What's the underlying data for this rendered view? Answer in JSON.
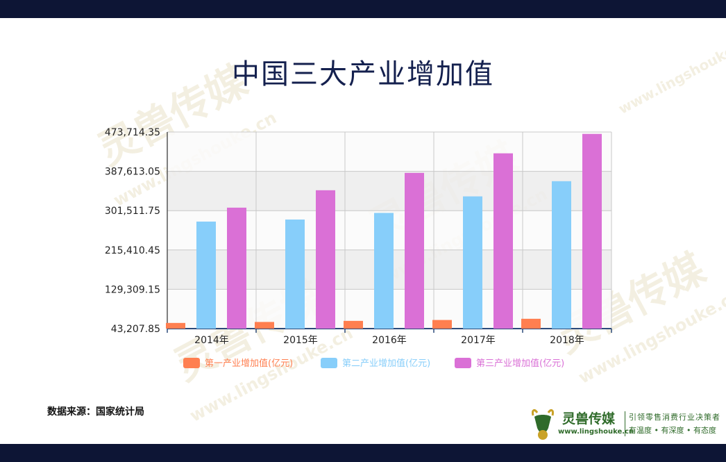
{
  "page": {
    "title": "中国三大产业增加值",
    "source": "数据来源：国家统计局"
  },
  "logo": {
    "name": "灵兽传媒",
    "url": "www.lingshouke.cn",
    "slogan": "引领零售消费行业决策者",
    "tagline": "有温度 • 有深度 • 有态度"
  },
  "watermark": {
    "text": "灵兽传媒",
    "url": "www.lingshouke.cn"
  },
  "colors": {
    "bars": [
      "#ff7f50",
      "#87cefa",
      "#da70d6"
    ],
    "frame": "#0d1535",
    "title": "#14204e",
    "brand": "#2f6b2a"
  },
  "chart_data": {
    "type": "bar",
    "title": "中国三大产业增加值",
    "categories": [
      "2014年",
      "2015年",
      "2016年",
      "2017年",
      "2018年"
    ],
    "series": [
      {
        "name": "第一产业增加值(亿元)",
        "values": [
          55626,
          57774,
          60139,
          62100,
          64734
        ]
      },
      {
        "name": "第二产业增加值(亿元)",
        "values": [
          277572,
          282040,
          296548,
          332743,
          366001
        ]
      },
      {
        "name": "第三产业增加值(亿元)",
        "values": [
          308059,
          346178,
          384221,
          427032,
          469575
        ]
      }
    ],
    "yticks": [
      "43,207.85",
      "129,309.15",
      "215,410.45",
      "301,511.75",
      "387,613.05",
      "473,714.35"
    ],
    "ylim": [
      43207.85,
      473714.35
    ],
    "xlabel": "",
    "ylabel": "",
    "grid": true,
    "legend_position": "bottom"
  }
}
